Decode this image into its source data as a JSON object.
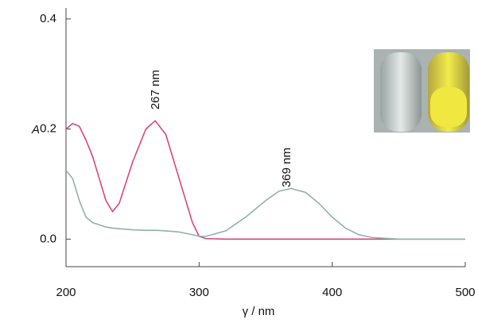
{
  "chart_data": {
    "type": "line",
    "x": [
      200,
      205,
      210,
      215,
      220,
      230,
      235,
      240,
      250,
      260,
      267,
      275,
      285,
      295,
      300,
      305,
      320,
      335,
      350,
      360,
      369,
      380,
      390,
      400,
      410,
      420,
      430,
      450,
      500
    ],
    "series": [
      {
        "name": null,
        "color": "#d9467f",
        "values": [
          0.2,
          0.21,
          0.205,
          0.18,
          0.15,
          0.07,
          0.05,
          0.065,
          0.14,
          0.2,
          0.215,
          0.19,
          0.11,
          0.03,
          0.005,
          0.001,
          0,
          0,
          0,
          0,
          0,
          0,
          0,
          0,
          0,
          0,
          0,
          0,
          0
        ]
      },
      {
        "name": null,
        "color": "#8fb3a8",
        "values": [
          0.125,
          0.11,
          0.07,
          0.04,
          0.03,
          0.022,
          0.02,
          0.019,
          0.017,
          0.016,
          0.016,
          0.015,
          0.013,
          0.008,
          0.005,
          0.005,
          0.015,
          0.04,
          0.07,
          0.087,
          0.092,
          0.085,
          0.065,
          0.04,
          0.02,
          0.008,
          0.003,
          0,
          0
        ]
      }
    ],
    "annotations": [
      "267 nm",
      "369 nm"
    ],
    "xlabel": "γ / nm",
    "ylabel": "A",
    "xlim": [
      200,
      500
    ],
    "xticks": [
      200,
      300,
      400,
      500
    ],
    "ylim": [
      -0.05,
      0.42
    ],
    "yticks": [
      {
        "value": 0,
        "label": "0.0"
      },
      0.2,
      0.4
    ]
  }
}
